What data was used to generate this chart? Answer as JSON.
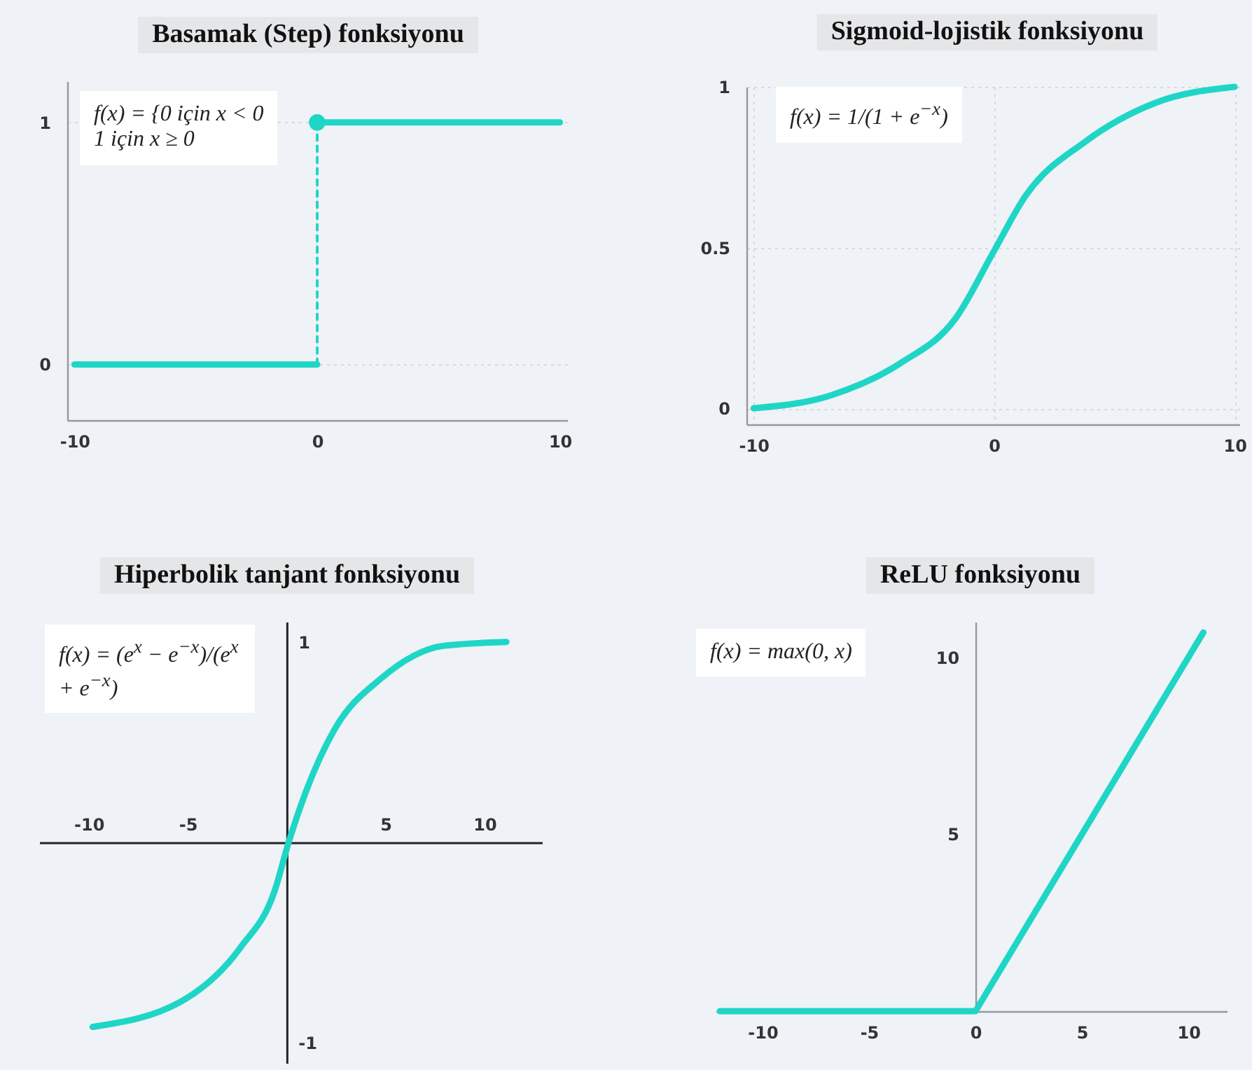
{
  "chart_data": [
    {
      "type": "line",
      "title": "Basamak (Step) fonksiyonu",
      "annotations": [
        "f(x) = {0 için x < 0\n1 için x ≥ 0"
      ],
      "xlim": [
        -10.3,
        10.3
      ],
      "xticks": [
        -10,
        0,
        10
      ],
      "ylim": [
        -0.23,
        1.17
      ],
      "yticks": [
        0,
        1
      ],
      "grid": "y",
      "series": [
        {
          "x": [
            -10,
            0
          ],
          "values": [
            0,
            0
          ],
          "color": "#1fd6c6"
        },
        {
          "x": [
            0,
            10
          ],
          "values": [
            1,
            1
          ],
          "color": "#1fd6c6"
        },
        {
          "x": [
            0,
            0
          ],
          "values": [
            0,
            1
          ],
          "color": "#1fd6c6",
          "line_style": "dashed"
        },
        {
          "type": "scatter",
          "x": [
            0
          ],
          "values": [
            1
          ],
          "color": "#1fd6c6",
          "marker": "circle"
        }
      ]
    },
    {
      "type": "line",
      "title": "Sigmoid-lojistik fonksiyonu",
      "annotations": [
        "f(x) = 1/(1 + e$^{−x}$)"
      ],
      "xlim": [
        -10.3,
        10.2
      ],
      "xticks": [
        -10,
        0,
        10
      ],
      "ylim": [
        -0.05,
        1
      ],
      "yticks": [
        0,
        0.5,
        1
      ],
      "grid": true,
      "series": [
        {
          "x": [
            -10,
            -6.8,
            -3.9,
            -1.6,
            0,
            1.3,
            3.8,
            6.7,
            10
          ],
          "values": [
            0,
            0.04,
            0.14,
            0.28,
            0.49,
            0.66,
            0.83,
            0.95,
            1
          ],
          "color": "#1fd6c6"
        }
      ]
    },
    {
      "type": "line",
      "title": "Hiperbolik tanjant fonksiyonu",
      "annotations": [
        "f(x) = (e$^{x}$ − e$^{−x}$)/(e$^{x}$ + e$^{−x}$)"
      ],
      "xlim": [
        -12.5,
        12.9
      ],
      "xticks": [
        -10,
        -5,
        5,
        10
      ],
      "ylim": [
        -1.1,
        1.1
      ],
      "yticks": [
        -1,
        1
      ],
      "series": [
        {
          "x": [
            -9.8,
            -5.1,
            -2.3,
            -0.6,
            0.1,
            1,
            2.4,
            4.8,
            7.9,
            11.1
          ],
          "values": [
            -0.92,
            -0.78,
            -0.52,
            -0.24,
            0,
            0.26,
            0.56,
            0.82,
            0.98,
            1
          ],
          "color": "#1fd6c6"
        }
      ]
    },
    {
      "type": "line",
      "title": "ReLU  fonksiyonu",
      "annotations": [
        "f(x) = max(0, x)"
      ],
      "xlim": [
        -12.2,
        11.8
      ],
      "xticks": [
        -10,
        -5,
        0,
        5,
        10
      ],
      "ylim": [
        0,
        11
      ],
      "yticks": [
        5,
        10
      ],
      "series": [
        {
          "x": [
            -12,
            0,
            10.7
          ],
          "values": [
            0,
            0,
            10.7
          ],
          "color": "#1fd6c6"
        }
      ]
    }
  ]
}
